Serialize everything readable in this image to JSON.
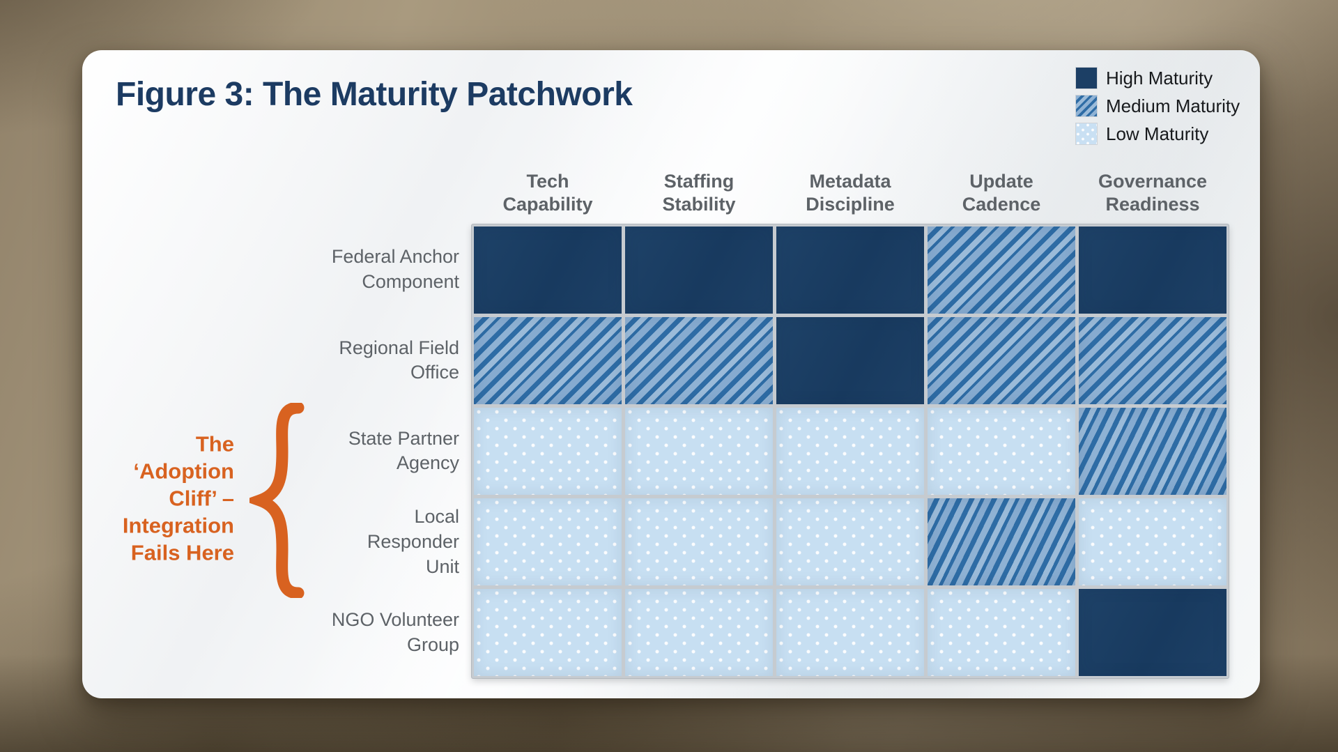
{
  "figure": {
    "title": "Figure 3: The Maturity Patchwork"
  },
  "legend": [
    {
      "label": "High Maturity",
      "level": "high"
    },
    {
      "label": "Medium Maturity",
      "level": "medium"
    },
    {
      "label": "Low Maturity",
      "level": "low"
    }
  ],
  "grid": {
    "column_label_lines": [
      "Tech\nCapability",
      "Staffing\nStability",
      "Metadata\nDiscipline",
      "Update\nCadence",
      "Governance\nReadiness"
    ],
    "row_label_lines": [
      "Federal Anchor\nComponent",
      "Regional Field\nOffice",
      "State Partner\nAgency",
      "Local\nResponder\nUnit",
      "NGO Volunteer\nGroup"
    ]
  },
  "annotation": {
    "text": "The\n‘Adoption\nCliff’ –\nIntegration\nFails Here"
  },
  "chart_data": {
    "type": "heatmap",
    "title": "Figure 3: The Maturity Patchwork",
    "columns": [
      "Tech Capability",
      "Staffing Stability",
      "Metadata Discipline",
      "Update Cadence",
      "Governance Readiness"
    ],
    "rows": [
      "Federal Anchor Component",
      "Regional Field Office",
      "State Partner Agency",
      "Local Responder Unit",
      "NGO Volunteer Group"
    ],
    "values": [
      [
        "high",
        "high",
        "high",
        "medium",
        "high"
      ],
      [
        "medium",
        "medium",
        "high",
        "medium",
        "medium"
      ],
      [
        "low",
        "low",
        "low",
        "low",
        "medium"
      ],
      [
        "low",
        "low",
        "low",
        "medium",
        "low"
      ],
      [
        "low",
        "low",
        "low",
        "low",
        "high"
      ]
    ],
    "scale_labels": {
      "high": "High Maturity",
      "medium": "Medium Maturity",
      "low": "Low Maturity"
    },
    "legend_position": "top-right",
    "annotation": {
      "text": "The ‘Adoption Cliff’ – Integration Fails Here",
      "applies_to_rows": [
        "State Partner Agency",
        "Local Responder Unit"
      ]
    }
  },
  "colors": {
    "high": "#1c3f65",
    "medium_stripe_dark": "#2e6ca5",
    "medium_stripe_light": "#8fb2d4",
    "low_base": "#c7dff2",
    "low_dot": "#ffffff",
    "accent_orange": "#d86220",
    "title_navy": "#1c3b62",
    "label_gray": "#5d6267"
  }
}
